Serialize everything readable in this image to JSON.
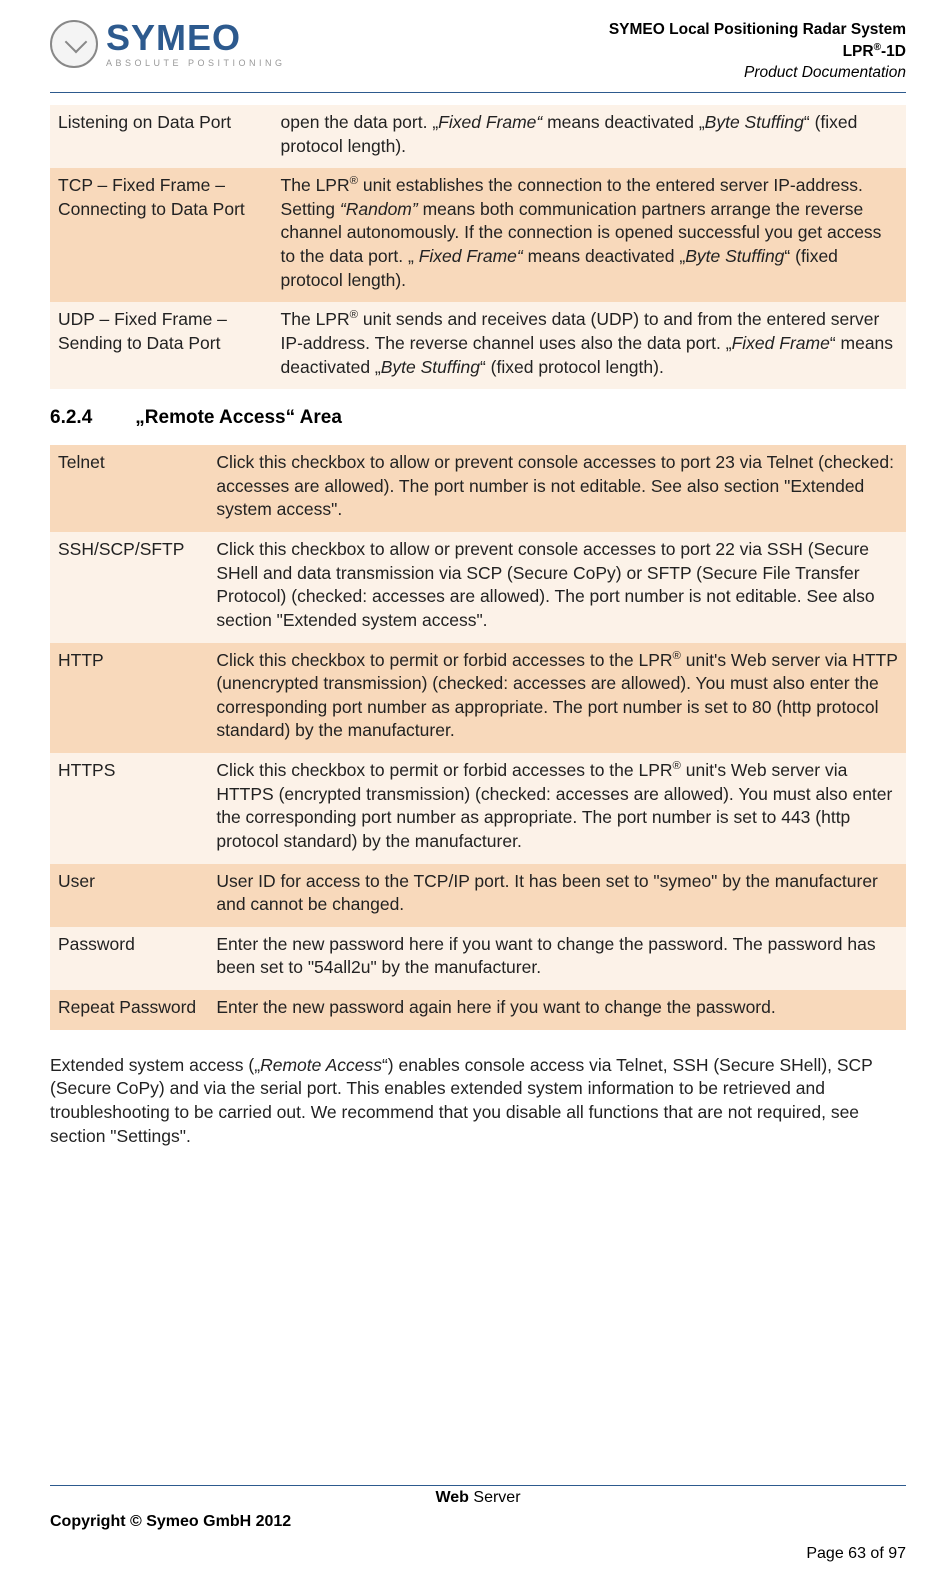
{
  "header": {
    "logo_text": "SYMEO",
    "logo_sub": "ABSOLUTE POSITIONING",
    "line1": "SYMEO Local Positioning Radar System",
    "line2_pre": "LPR",
    "line2_sup": "®",
    "line2_post": "-1D",
    "line3": "Product Documentation"
  },
  "table1": {
    "rows": [
      {
        "label": "Listening on Data Port",
        "desc_html": "open the data port. „<span class='ital'>Fixed Frame“</span> means deactivated „<span class='ital'>Byte Stuffing</span>“ (fixed protocol length).",
        "cls": "even"
      },
      {
        "label": "TCP – Fixed Frame – Connecting to Data Port",
        "desc_html": "The LPR<sup>®</sup> unit establishes the connection to the entered server IP-address. Setting <span class='ital'>“Random”</span> means both communication partners arrange the reverse channel autonomously. If the connection is opened successful you get access to the data port. „ <span class='ital'>Fixed Frame“</span> means deactivated „<span class='ital'>Byte Stuffing</span>“ (fixed protocol length).",
        "cls": "odd"
      },
      {
        "label": "UDP – Fixed Frame – Sending to Data Port",
        "desc_html": "The LPR<sup>®</sup> unit sends and receives data (UDP) to and from the entered server IP-address. The reverse channel uses also the data port. „<span class='ital'>Fixed Frame</span>“ means deactivated „<span class='ital'>Byte Stuffing</span>“ (fixed protocol length).",
        "cls": "even"
      }
    ]
  },
  "section": {
    "num": "6.2.4",
    "title": "„Remote Access“ Area"
  },
  "table2": {
    "rows": [
      {
        "label": "Telnet",
        "desc_html": "Click this checkbox to allow or prevent console accesses to port 23 via Telnet (checked: accesses are allowed). The port number is not editable. See also section \"Extended system access\".",
        "cls": "odd"
      },
      {
        "label": "SSH/SCP/SFTP",
        "desc_html": "Click this checkbox to allow or prevent console accesses to port 22 via SSH (Secure SHell and data transmission via SCP (Secure CoPy) or SFTP (Secure File Transfer Protocol) (checked: accesses are allowed). The port number is not editable. See also section \"Extended system access\".",
        "cls": "even"
      },
      {
        "label": "HTTP",
        "desc_html": "Click this checkbox to permit or forbid accesses to the LPR<sup>®</sup> unit's Web server via HTTP (unencrypted transmission) (checked: accesses are allowed). You must also enter the corresponding port number as appropriate. The port number is set to 80 (http protocol standard) by the manufacturer.",
        "cls": "odd"
      },
      {
        "label": "HTTPS",
        "desc_html": "Click this checkbox to permit or forbid accesses to the LPR<sup>®</sup> unit's Web server via HTTPS (encrypted transmission) (checked: accesses are allowed). You must also enter the corresponding port number as appropriate. The port number is set to 443 (http protocol standard) by the manufacturer.",
        "cls": "even"
      },
      {
        "label": "User",
        "desc_html": "User ID for access to the TCP/IP port. It has been set to \"symeo\" by the manufacturer and cannot be changed.",
        "cls": "odd"
      },
      {
        "label": "Password",
        "desc_html": "Enter the new password here if you want to change the password. The password has been set to \"54all2u\" by the manufacturer.",
        "cls": "even"
      },
      {
        "label": "Repeat Password",
        "desc_html": "Enter the new password again here if you want to change the password.",
        "cls": "odd"
      }
    ]
  },
  "body_paragraph_html": "Extended system access („<span class='ital'>Remote Access</span>“) enables console access via Telnet, SSH (Secure SHell), SCP (Secure CoPy) and via the serial port. This enables extended system information to be retrieved and troubleshooting to be carried out. We recommend that you disable all functions that are not required, see section \"Settings\".",
  "footer": {
    "center_bold": "Web",
    "center_rest": " Server",
    "copyright": "Copyright © Symeo GmbH 2012",
    "page": "Page 63 of 97"
  },
  "colors": {
    "row_odd": "#f8d9bb",
    "row_even": "#fcf2e8",
    "rule": "#2d5a8e",
    "logo": "#2d5a8e"
  }
}
